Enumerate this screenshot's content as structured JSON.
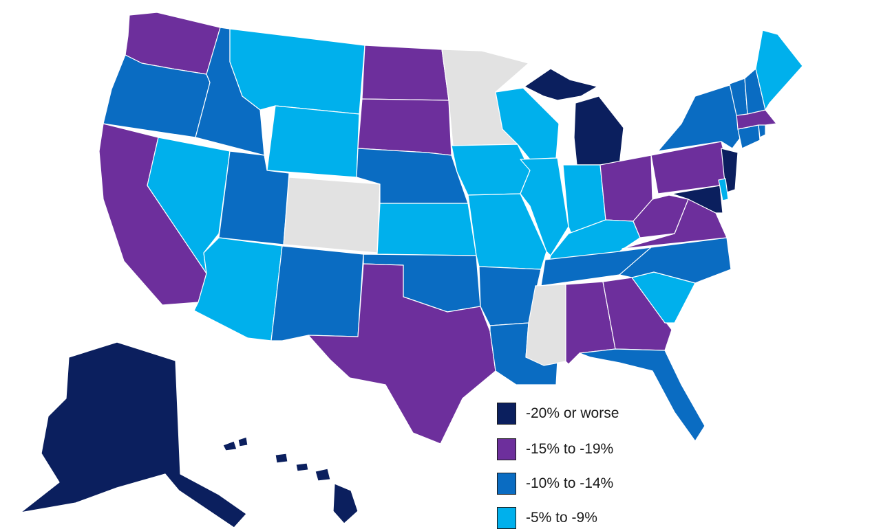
{
  "colors": {
    "worst": "#0b1f5e",
    "purple": "#6d2f9c",
    "mid": "#0a6cc2",
    "light": "#00b0ec",
    "none": "#e2e2e2"
  },
  "legend": [
    {
      "label": "-20% or worse",
      "color": "#0b1f5e"
    },
    {
      "label": "-15% to -19%",
      "color": "#6d2f9c"
    },
    {
      "label": "-10% to -14%",
      "color": "#0a6cc2"
    },
    {
      "label": "-5% to -9%",
      "color": "#00b0ec"
    }
  ],
  "states": {
    "WA": "purple",
    "OR": "mid",
    "CA": "purple",
    "ID": "mid",
    "NV": "light",
    "MT": "light",
    "WY": "light",
    "UT": "mid",
    "AZ": "light",
    "CO": "none",
    "NM": "mid",
    "ND": "purple",
    "SD": "purple",
    "NE": "mid",
    "KS": "light",
    "OK": "mid",
    "TX": "purple",
    "MN": "none",
    "IA": "light",
    "MO": "light",
    "AR": "mid",
    "LA": "mid",
    "WI": "light",
    "IL": "light",
    "MI": "worst",
    "IN": "light",
    "OH": "purple",
    "KY": "light",
    "TN": "mid",
    "MS": "none",
    "AL": "purple",
    "GA": "purple",
    "FL": "mid",
    "SC": "light",
    "NC": "mid",
    "VA": "purple",
    "WV": "purple",
    "PA": "purple",
    "NY": "mid",
    "NJ": "worst",
    "MD": "worst",
    "DE": "light",
    "CT": "mid",
    "RI": "mid",
    "MA": "purple",
    "VT": "mid",
    "NH": "mid",
    "ME": "light",
    "AK": "worst",
    "HI": "worst"
  }
}
